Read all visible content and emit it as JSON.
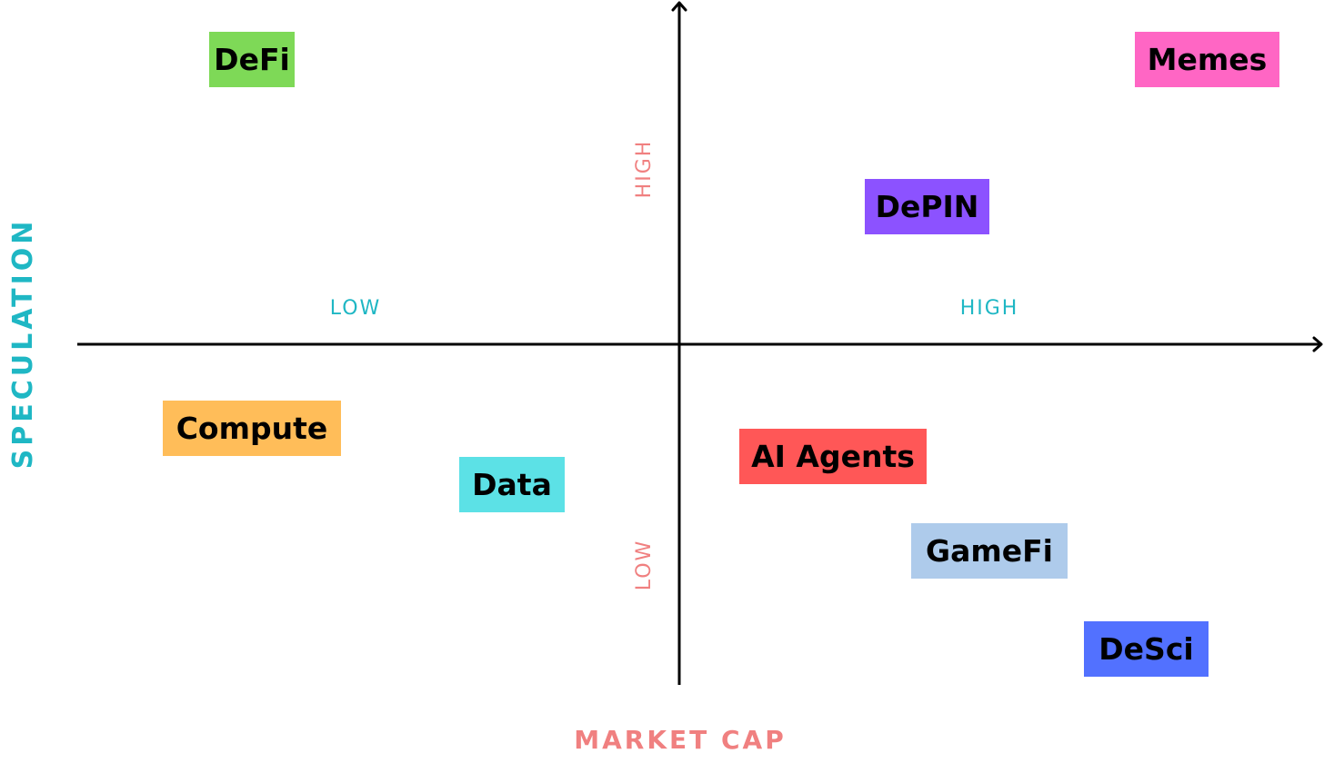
{
  "axes": {
    "y_title": "SPECULATION",
    "x_title": "MARKET CAP",
    "x_low": "LOW",
    "x_high": "HIGH",
    "y_high": "HIGH",
    "y_low": "LOW"
  },
  "colors": {
    "speculation_accent": "#1FB7C4",
    "market_cap_accent": "#F08080",
    "axis": "#000000"
  },
  "sectors": {
    "defi": {
      "label": "DeFi",
      "color": "#7ED957"
    },
    "memes": {
      "label": "Memes",
      "color": "#FF66C4"
    },
    "depin": {
      "label": "DePIN",
      "color": "#8C52FF"
    },
    "compute": {
      "label": "Compute",
      "color": "#FFBD59"
    },
    "data": {
      "label": "Data",
      "color": "#5CE1E6"
    },
    "ai_agents": {
      "label": "AI Agents",
      "color": "#FF5757"
    },
    "gamefi": {
      "label": "GameFi",
      "color": "#AECBEB"
    },
    "desci": {
      "label": "DeSci",
      "color": "#5271FF"
    }
  }
}
